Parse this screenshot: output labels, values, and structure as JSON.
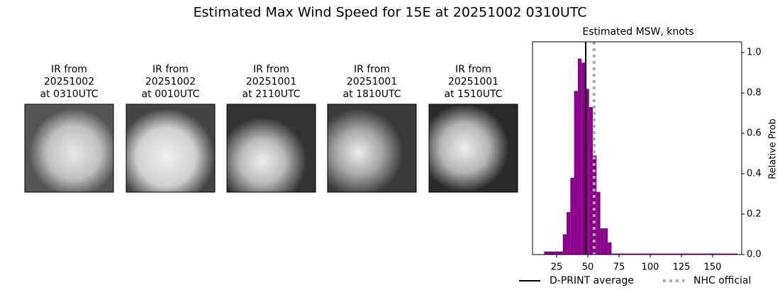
{
  "page_title": "Estimated Max Wind Speed for 15E at 20251002 0310UTC",
  "panels": [
    {
      "lines": [
        "IR from",
        "20251002",
        "at 0310UTC"
      ]
    },
    {
      "lines": [
        "IR from",
        "20251002",
        "at 0010UTC"
      ]
    },
    {
      "lines": [
        "IR from",
        "20251001",
        "at 2110UTC"
      ]
    },
    {
      "lines": [
        "IR from",
        "20251001",
        "at 1810UTC"
      ]
    },
    {
      "lines": [
        "IR from",
        "20251001",
        "at 1510UTC"
      ]
    }
  ],
  "chart_data": {
    "type": "histogram",
    "title": "Estimated MSW, knots",
    "y_label": "Relative Prob",
    "color": "#8b008b",
    "bins": [
      15,
      18,
      21,
      24,
      27,
      30,
      33,
      36,
      39,
      42,
      45,
      48,
      51,
      54,
      57,
      60,
      63,
      66,
      69,
      170
    ],
    "values": [
      0.015,
      0.015,
      0.015,
      0.015,
      0.015,
      0.1,
      0.21,
      0.38,
      0.81,
      0.97,
      0.95,
      0.82,
      0.73,
      0.49,
      0.31,
      0.13,
      0.13,
      0.06,
      0.005
    ],
    "lines": [
      {
        "name": "D-PRINT average",
        "value": 48.3,
        "color": "#000000",
        "style": "solid"
      },
      {
        "name": "NHC official",
        "value": 55,
        "color": "#aaaaaa",
        "style": "dotted"
      }
    ],
    "xlim": [
      5.7,
      173.3
    ],
    "xticks": [
      25,
      50,
      75,
      100,
      125,
      150
    ],
    "ylim": [
      0,
      1.053
    ],
    "yticks": [
      {
        "value": 0,
        "label": "0.0"
      },
      0.2,
      0.4,
      0.6,
      0.8,
      {
        "value": 1,
        "label": "1.0"
      }
    ]
  }
}
